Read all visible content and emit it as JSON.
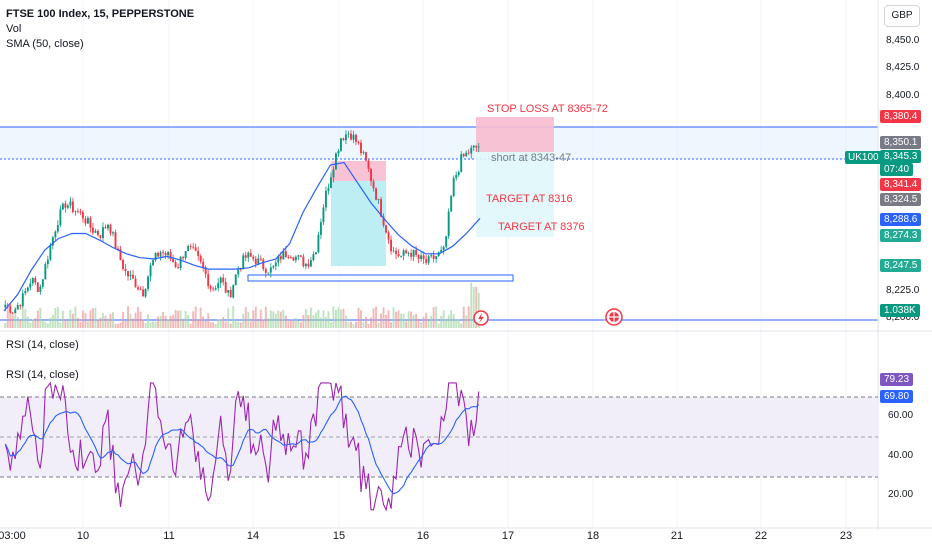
{
  "header": {
    "title": "FTSE 100 Index, 15, PEPPERSTONE",
    "vol": "Vol",
    "sma": "SMA (50, close)",
    "currency": "GBP"
  },
  "rsi_pane": {
    "header_label": "RSI (14, close)",
    "legend_label": "RSI (14, close)"
  },
  "annotations": {
    "stop_loss": "STOP LOSS AT 8365-72",
    "short": "short at 8343-47",
    "target1": "TARGET AT 8316",
    "target2": "TARGET AT 8376"
  },
  "symbol_badge": "UK100",
  "price_axis": [
    "8,450.0",
    "8,425.0",
    "8,400.0",
    "8,225.0",
    "8,200.0"
  ],
  "price_badges": [
    {
      "text": "8,380.4",
      "color": "#f23645"
    },
    {
      "text": "8,350.1",
      "color": "#787b86"
    },
    {
      "text": "8,345.3",
      "color": "#089981"
    },
    {
      "text": "07:40",
      "color": "#089981"
    },
    {
      "text": "8,341.4",
      "color": "#f23645"
    },
    {
      "text": "8,324.5",
      "color": "#787b86"
    },
    {
      "text": "8,288.6",
      "color": "#2962ff"
    },
    {
      "text": "8,274.3",
      "color": "#22ab94"
    },
    {
      "text": "8,247.5",
      "color": "#22ab94"
    },
    {
      "text": "1.038K",
      "color": "#089981"
    }
  ],
  "rsi_axis": [
    "60.00",
    "40.00",
    "20.00"
  ],
  "rsi_badges": [
    {
      "text": "79.23",
      "color": "#7e57c2"
    },
    {
      "text": "69.80",
      "color": "#2962ff"
    }
  ],
  "x_axis": [
    "03:00",
    "10",
    "11",
    "14",
    "15",
    "16",
    "17",
    "18",
    "21",
    "22",
    "23"
  ],
  "chart_data": {
    "type": "candlestick",
    "symbol": "FTSE 100 Index",
    "interval": "15",
    "source": "PEPPERSTONE",
    "price_range": [
      8200,
      8460
    ],
    "close_path": [
      8220,
      8215,
      8225,
      8240,
      8232,
      8260,
      8285,
      8300,
      8295,
      8290,
      8280,
      8275,
      8285,
      8262,
      8245,
      8238,
      8230,
      8252,
      8262,
      8258,
      8250,
      8265,
      8260,
      8248,
      8232,
      8240,
      8226,
      8248,
      8258,
      8256,
      8250,
      8247,
      8258,
      8262,
      8256,
      8252,
      8262,
      8300,
      8328,
      8352,
      8356,
      8346,
      8330,
      8308,
      8285,
      8262,
      8258,
      8262,
      8256,
      8253,
      8258,
      8262,
      8315,
      8335,
      8341,
      8345
    ],
    "sma_path": [
      8215,
      8228,
      8247,
      8263,
      8272,
      8276,
      8276,
      8271,
      8265,
      8260,
      8257,
      8256,
      8258,
      8255,
      8251,
      8248,
      8248,
      8248,
      8249,
      8253,
      8256,
      8268,
      8293,
      8312,
      8330,
      8332,
      8316,
      8300,
      8287,
      8275,
      8266,
      8260,
      8260,
      8266,
      8276,
      8288
    ],
    "rsi_range": [
      10,
      90
    ],
    "rsi_levels": [
      70,
      50,
      30
    ],
    "rsi_current": 79.23,
    "rsi_ma_current": 69.8,
    "volume_current": "1.038K"
  }
}
